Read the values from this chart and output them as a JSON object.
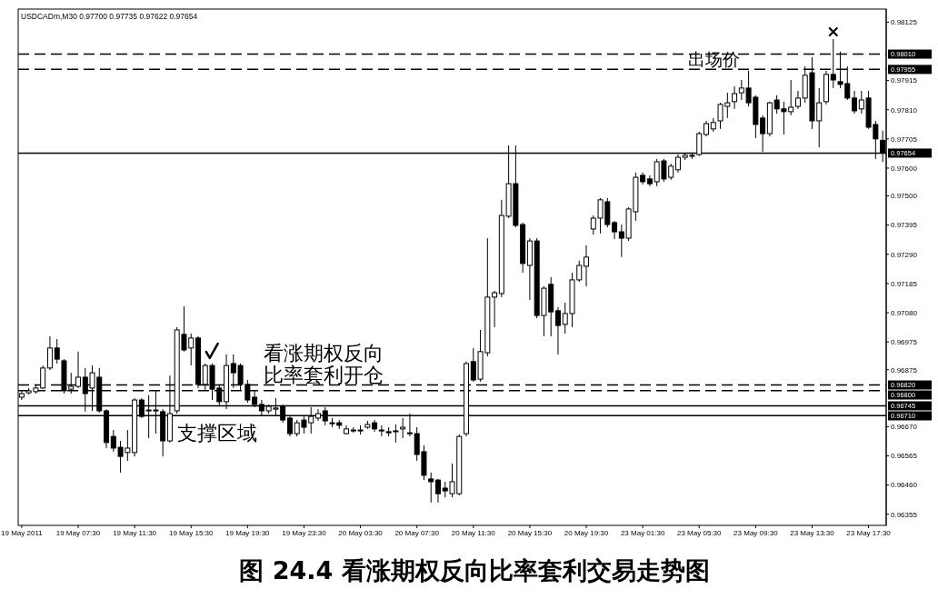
{
  "chart_data": {
    "type": "candlestick",
    "title": "USDCADm,M30 0.97700 0.97735 0.97622 0.97654",
    "annotations": [
      "图 24.4 看涨期权反向比率套利交易走势图",
      {
        "text": "出场价",
        "y": 0.97955
      },
      {
        "text": "看涨期权反向比率套利开仓",
        "y": 0.9682
      },
      {
        "text": "支撑区域",
        "y": 0.9671
      }
    ],
    "categories": [
      "19 May 2011",
      null,
      null,
      null,
      null,
      null,
      null,
      null,
      "19 May 07:30",
      null,
      null,
      null,
      null,
      null,
      null,
      null,
      "19 May 11:30",
      null,
      null,
      null,
      null,
      null,
      null,
      null,
      "19 May 15:30",
      null,
      null,
      null,
      null,
      null,
      null,
      null,
      "19 May 19:30",
      null,
      null,
      null,
      null,
      null,
      null,
      null,
      "19 May 23:30",
      null,
      null,
      null,
      null,
      null,
      null,
      null,
      "20 May 03:30",
      null,
      null,
      null,
      null,
      null,
      null,
      null,
      "20 May 07:30",
      null,
      null,
      null,
      null,
      null,
      null,
      null,
      "20 May 11:30",
      null,
      null,
      null,
      null,
      null,
      null,
      null,
      "20 May 15:30",
      null,
      null,
      null,
      null,
      null,
      null,
      null,
      "20 May 19:30",
      null,
      null,
      null,
      null,
      null,
      null,
      null,
      "23 May 01:30",
      null,
      null,
      null,
      null,
      null,
      null,
      null,
      "23 May 05:30",
      null,
      null,
      null,
      null,
      null,
      null,
      null,
      "23 May 09:30",
      null,
      null,
      null,
      null,
      null,
      null,
      null,
      "23 May 13:30",
      null,
      null,
      null,
      null,
      null,
      null,
      null,
      "23 May 17:30",
      null,
      null
    ],
    "ohlc": [
      [
        0.96776,
        0.96799,
        0.96766,
        0.96789
      ],
      [
        0.96792,
        0.96809,
        0.96786,
        0.96799
      ],
      [
        0.96796,
        0.96819,
        0.96789,
        0.96809
      ],
      [
        0.96809,
        0.9689,
        0.96805,
        0.96881
      ],
      [
        0.96881,
        0.96995,
        0.96874,
        0.96953
      ],
      [
        0.96953,
        0.96985,
        0.96897,
        0.96913
      ],
      [
        0.96907,
        0.96913,
        0.96789,
        0.96799
      ],
      [
        0.96805,
        0.96864,
        0.96789,
        0.96815
      ],
      [
        0.96815,
        0.9694,
        0.96809,
        0.96848
      ],
      [
        0.96848,
        0.96881,
        0.96724,
        0.96789
      ],
      [
        0.96809,
        0.9689,
        0.96727,
        0.96864
      ],
      [
        0.96848,
        0.96881,
        0.9672,
        0.96727
      ],
      [
        0.96727,
        0.96733,
        0.96593,
        0.96613
      ],
      [
        0.96635,
        0.96658,
        0.9658,
        0.96593
      ],
      [
        0.96596,
        0.96619,
        0.96505,
        0.96563
      ],
      [
        0.96577,
        0.96658,
        0.96547,
        0.96593
      ],
      [
        0.96577,
        0.96773,
        0.96563,
        0.96766
      ],
      [
        0.96766,
        0.96773,
        0.96701,
        0.96707
      ],
      [
        0.96727,
        0.96783,
        0.96629,
        0.9673
      ],
      [
        0.96727,
        0.96799,
        0.96645,
        0.9673
      ],
      [
        0.96724,
        0.96733,
        0.96563,
        0.96619
      ],
      [
        0.96619,
        0.96854,
        0.96613,
        0.96717
      ],
      [
        0.96727,
        0.97028,
        0.96717,
        0.97018
      ],
      [
        0.97002,
        0.97103,
        0.9694,
        0.96946
      ],
      [
        0.96953,
        0.97005,
        0.9689,
        0.96989
      ],
      [
        0.96989,
        0.96995,
        0.96809,
        0.96822
      ],
      [
        0.96822,
        0.96897,
        0.96799,
        0.9689
      ],
      [
        0.9689,
        0.96897,
        0.96766,
        0.96805
      ],
      [
        0.96809,
        0.96822,
        0.96743,
        0.9676
      ],
      [
        0.9676,
        0.9693,
        0.96733,
        0.9689
      ],
      [
        0.96897,
        0.9693,
        0.96809,
        0.96864
      ],
      [
        0.9689,
        0.96897,
        0.96799,
        0.96822
      ],
      [
        0.96822,
        0.96838,
        0.96756,
        0.96766
      ],
      [
        0.96776,
        0.96799,
        0.9674,
        0.9675
      ],
      [
        0.9675,
        0.96766,
        0.96711,
        0.96727
      ],
      [
        0.96727,
        0.9675,
        0.96717,
        0.96743
      ],
      [
        0.96733,
        0.96773,
        0.96711,
        0.96737
      ],
      [
        0.96743,
        0.9675,
        0.96684,
        0.96694
      ],
      [
        0.96701,
        0.96707,
        0.96635,
        0.96645
      ],
      [
        0.96645,
        0.96694,
        0.96635,
        0.96684
      ],
      [
        0.96694,
        0.96707,
        0.96645,
        0.96668
      ],
      [
        0.96684,
        0.9674,
        0.96645,
        0.96707
      ],
      [
        0.96701,
        0.96733,
        0.96691,
        0.96717
      ],
      [
        0.96727,
        0.9674,
        0.96675,
        0.96691
      ],
      [
        0.96684,
        0.96701,
        0.96668,
        0.96681
      ],
      [
        0.96684,
        0.96694,
        0.96662,
        0.96675
      ],
      [
        0.96645,
        0.96675,
        0.96642,
        0.96662
      ],
      [
        0.96658,
        0.96668,
        0.96648,
        0.96655
      ],
      [
        0.96655,
        0.96675,
        0.96642,
        0.96658
      ],
      [
        0.96668,
        0.96691,
        0.96662,
        0.96678
      ],
      [
        0.96684,
        0.96694,
        0.96652,
        0.96662
      ],
      [
        0.96658,
        0.96675,
        0.96635,
        0.96655
      ],
      [
        0.96652,
        0.96668,
        0.96635,
        0.96648
      ],
      [
        0.96652,
        0.96678,
        0.96613,
        0.96655
      ],
      [
        0.96662,
        0.96701,
        0.96629,
        0.96668
      ],
      [
        0.96645,
        0.96717,
        0.96635,
        0.96648
      ],
      [
        0.96645,
        0.96668,
        0.96547,
        0.9657
      ],
      [
        0.9658,
        0.96603,
        0.96478,
        0.96495
      ],
      [
        0.96482,
        0.96505,
        0.96397,
        0.96472
      ],
      [
        0.96478,
        0.96482,
        0.96397,
        0.96429
      ],
      [
        0.96449,
        0.96472,
        0.96416,
        0.96439
      ],
      [
        0.96429,
        0.96537,
        0.96416,
        0.96472
      ],
      [
        0.96429,
        0.96642,
        0.96423,
        0.96635
      ],
      [
        0.96645,
        0.96904,
        0.96635,
        0.96897
      ],
      [
        0.96904,
        0.96953,
        0.96832,
        0.96838
      ],
      [
        0.96841,
        0.97018,
        0.96832,
        0.9694
      ],
      [
        0.96936,
        0.97348,
        0.96923,
        0.97136
      ],
      [
        0.97136,
        0.97159,
        0.97028,
        0.97152
      ],
      [
        0.97149,
        0.97486,
        0.97136,
        0.9743
      ],
      [
        0.97427,
        0.97682,
        0.9742,
        0.97544
      ],
      [
        0.97544,
        0.97682,
        0.97387,
        0.97394
      ],
      [
        0.97397,
        0.97404,
        0.97224,
        0.97257
      ],
      [
        0.9725,
        0.97348,
        0.97126,
        0.97338
      ],
      [
        0.97338,
        0.97348,
        0.9706,
        0.9707
      ],
      [
        0.9707,
        0.97175,
        0.96995,
        0.97168
      ],
      [
        0.97182,
        0.97208,
        0.96995,
        0.97083
      ],
      [
        0.97087,
        0.971,
        0.9693,
        0.97034
      ],
      [
        0.97038,
        0.97116,
        0.97005,
        0.97077
      ],
      [
        0.97077,
        0.97224,
        0.97028,
        0.97198
      ],
      [
        0.97198,
        0.97267,
        0.97191,
        0.9725
      ],
      [
        0.97247,
        0.97322,
        0.97175,
        0.9728
      ],
      [
        0.97381,
        0.9743,
        0.97361,
        0.9742
      ],
      [
        0.9742,
        0.97492,
        0.97365,
        0.97486
      ],
      [
        0.97479,
        0.97492,
        0.97387,
        0.97397
      ],
      [
        0.97404,
        0.9741,
        0.97345,
        0.97371
      ],
      [
        0.97371,
        0.97397,
        0.9728,
        0.97348
      ],
      [
        0.97348,
        0.97459,
        0.97338,
        0.97453
      ],
      [
        0.97443,
        0.97584,
        0.9741,
        0.97567
      ],
      [
        0.97574,
        0.97584,
        0.97541,
        0.97551
      ],
      [
        0.97561,
        0.97574,
        0.97535,
        0.97544
      ],
      [
        0.97551,
        0.97633,
        0.97535,
        0.97623
      ],
      [
        0.97626,
        0.97633,
        0.97551,
        0.97561
      ],
      [
        0.97567,
        0.97616,
        0.97558,
        0.97607
      ],
      [
        0.97594,
        0.97649,
        0.97584,
        0.97639
      ],
      [
        0.97639,
        0.97656,
        0.97629,
        0.97646
      ],
      [
        0.97643,
        0.97656,
        0.97633,
        0.97646
      ],
      [
        0.97649,
        0.97731,
        0.97643,
        0.97724
      ],
      [
        0.97721,
        0.9777,
        0.97714,
        0.9776
      ],
      [
        0.97741,
        0.9778,
        0.97731,
        0.97764
      ],
      [
        0.9777,
        0.97835,
        0.97741,
        0.97829
      ],
      [
        0.97822,
        0.97871,
        0.9778,
        0.97835
      ],
      [
        0.97839,
        0.97894,
        0.97813,
        0.97868
      ],
      [
        0.97871,
        0.97917,
        0.97845,
        0.97888
      ],
      [
        0.97888,
        0.9795,
        0.97822,
        0.97835
      ],
      [
        0.97855,
        0.97862,
        0.97708,
        0.97757
      ],
      [
        0.9778,
        0.9779,
        0.97659,
        0.97724
      ],
      [
        0.97724,
        0.97839,
        0.97714,
        0.97835
      ],
      [
        0.97845,
        0.97862,
        0.97796,
        0.97813
      ],
      [
        0.97813,
        0.97839,
        0.97721,
        0.97803
      ],
      [
        0.97803,
        0.97917,
        0.9779,
        0.97819
      ],
      [
        0.97822,
        0.97878,
        0.97813,
        0.97852
      ],
      [
        0.97852,
        0.97966,
        0.97835,
        0.97934
      ],
      [
        0.97943,
        0.97999,
        0.97741,
        0.9777
      ],
      [
        0.9777,
        0.97888,
        0.97675,
        0.97835
      ],
      [
        0.97839,
        0.9795,
        0.97829,
        0.97937
      ],
      [
        0.97937,
        0.98064,
        0.97888,
        0.97917
      ],
      [
        0.97911,
        0.98019,
        0.97888,
        0.97901
      ],
      [
        0.97904,
        0.97966,
        0.97845,
        0.97852
      ],
      [
        0.97852,
        0.97878,
        0.97796,
        0.97806
      ],
      [
        0.97813,
        0.97878,
        0.97796,
        0.97845
      ],
      [
        0.97852,
        0.97878,
        0.97741,
        0.97747
      ],
      [
        0.97757,
        0.9777,
        0.97633,
        0.97705
      ],
      [
        0.977,
        0.97735,
        0.97622,
        0.97654
      ]
    ],
    "ylim": [
      0.96315,
      0.98172
    ],
    "yticks": [
      0.98125,
      0.97915,
      {
        "value": 0.9781,
        "label": "0.97810"
      },
      0.97705,
      {
        "value": 0.976,
        "label": "0.97600"
      },
      {
        "value": 0.975,
        "label": "0.97500"
      },
      0.97395,
      {
        "value": 0.9729,
        "label": "0.97290"
      },
      0.97185,
      {
        "value": 0.9708,
        "label": "0.97080"
      },
      0.96975,
      0.96875,
      {
        "value": 0.9667,
        "label": "0.96670"
      },
      0.96565,
      {
        "value": 0.9646,
        "label": "0.96460"
      },
      0.96355
    ],
    "ref_lines": [
      {
        "axis": "y",
        "value": 0.9801,
        "line_style": "dashed",
        "label": "0.98010"
      },
      {
        "axis": "y",
        "value": 0.97955,
        "line_style": "dashed",
        "label": "0.97955"
      },
      {
        "axis": "y",
        "value": 0.97654,
        "line_style": "solid",
        "label": "0.97654"
      },
      {
        "axis": "y",
        "value": 0.9682,
        "line_style": "dashed",
        "label": "0.96820"
      },
      {
        "axis": "y",
        "value": 0.968,
        "line_style": "dashed",
        "label": "0.96800"
      },
      {
        "axis": "y",
        "value": 0.96745,
        "line_style": "solid",
        "label": "0.96745"
      },
      {
        "axis": "y",
        "value": 0.9671,
        "line_style": "solid",
        "label": "0.96710"
      }
    ]
  }
}
